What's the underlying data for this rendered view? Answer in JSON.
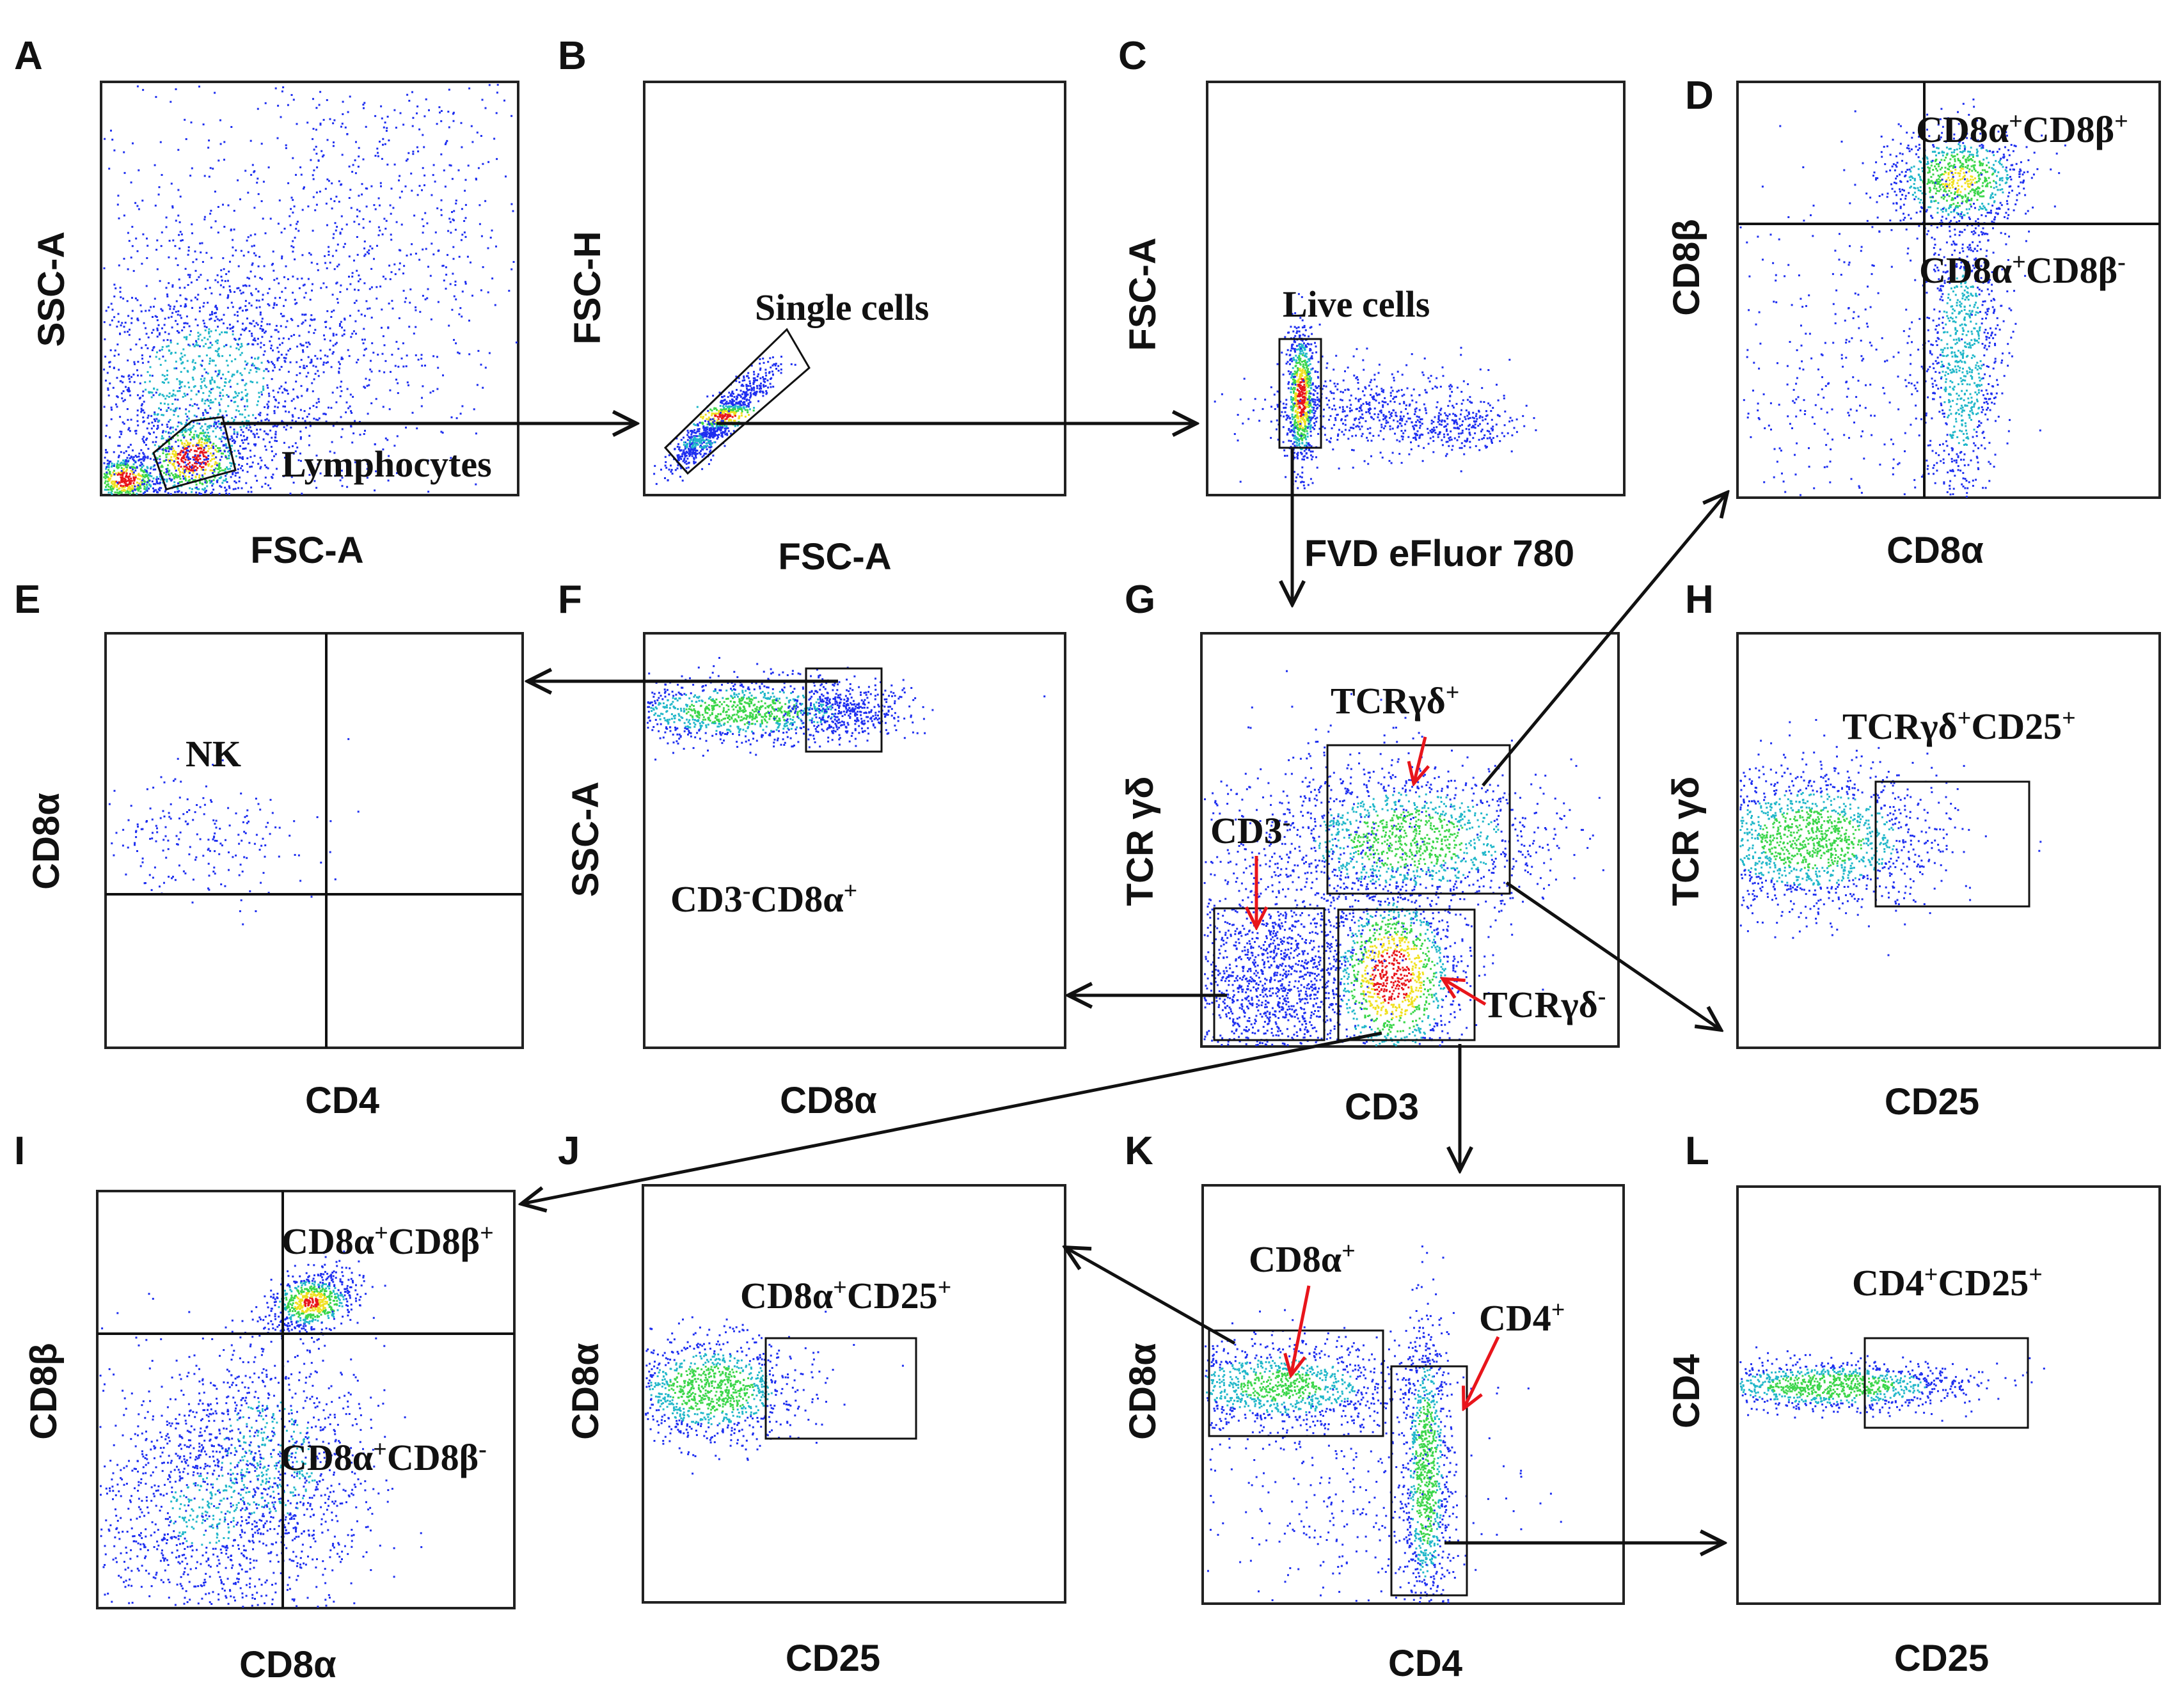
{
  "panels": [
    {
      "id": "A",
      "xlabel": "FSC-A",
      "ylabel": "SSC-A"
    },
    {
      "id": "B",
      "xlabel": "FSC-A",
      "ylabel": "FSC-H"
    },
    {
      "id": "C",
      "xlabel": "FVD eFluor 780",
      "ylabel": "FSC-A"
    },
    {
      "id": "D",
      "xlabel": "CD8α",
      "ylabel": "CD8β"
    },
    {
      "id": "E",
      "xlabel": "CD4",
      "ylabel": "CD8α"
    },
    {
      "id": "F",
      "xlabel": "CD8α",
      "ylabel": "SSC-A"
    },
    {
      "id": "G",
      "xlabel": "CD3",
      "ylabel": "TCR γδ"
    },
    {
      "id": "H",
      "xlabel": "CD25",
      "ylabel": "TCR γδ"
    },
    {
      "id": "I",
      "xlabel": "CD8α",
      "ylabel": "CD8β"
    },
    {
      "id": "J",
      "xlabel": "CD25",
      "ylabel": "CD8α"
    },
    {
      "id": "K",
      "xlabel": "CD4",
      "ylabel": "CD8α"
    },
    {
      "id": "L",
      "xlabel": "CD25",
      "ylabel": "CD4"
    }
  ],
  "gates": {
    "a_lymphocytes": "Lymphocytes",
    "b_single": "Single cells",
    "c_live": "Live cells",
    "d_upper": {
      "main1": "CD8α",
      "sup1": "+",
      "main2": "CD8β",
      "sup2": "+"
    },
    "d_lower": {
      "main1": "CD8α",
      "sup1": "+",
      "main2": "CD8β",
      "sup2": "-"
    },
    "e_nk": "NK",
    "f_gate": {
      "main1": "CD3",
      "sup1": "-",
      "main2": "CD8α",
      "sup2": "+"
    },
    "g_tcr_pos": {
      "main": "TCRγδ",
      "sup": "+"
    },
    "g_cd3_neg": {
      "main": "CD3",
      "sup": "-"
    },
    "g_tcr_neg": {
      "main": "TCRγδ",
      "sup": "-"
    },
    "h_gate": {
      "main1": "TCRγδ",
      "sup1": "+",
      "main2": "CD25",
      "sup2": "+"
    },
    "i_upper": {
      "main1": "CD8α",
      "sup1": "+",
      "main2": "CD8β",
      "sup2": "+"
    },
    "i_lower": {
      "main1": "CD8α",
      "sup1": "+",
      "main2": "CD8β",
      "sup2": "-"
    },
    "j_gate": {
      "main1": "CD8α",
      "sup1": "+",
      "main2": "CD25",
      "sup2": "+"
    },
    "k_cd8": {
      "main": "CD8α",
      "sup": "+"
    },
    "k_cd4": {
      "main": "CD4",
      "sup": "+"
    },
    "l_gate": {
      "main1": "CD4",
      "sup1": "+",
      "main2": "CD25",
      "sup2": "+"
    }
  },
  "colors": {
    "scatter_low": "#1e2ff0",
    "scatter_mid": "#21b7c9",
    "scatter_high": "#3bd64a",
    "scatter_peak": "#f0e020",
    "scatter_max": "#e8151b",
    "flow_arrow": "#111111",
    "red_arrow": "#e8151b"
  }
}
